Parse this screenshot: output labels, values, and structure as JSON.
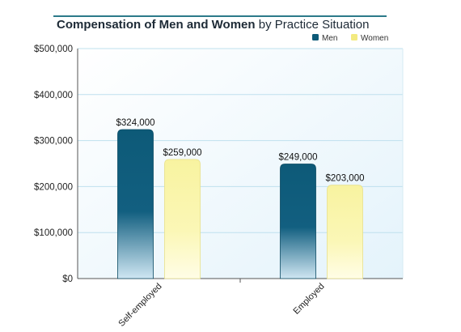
{
  "chart_data": {
    "type": "bar",
    "title_bold": "Compensation of Men and Women",
    "title_rest": " by Practice Situation",
    "categories": [
      "Self-employed",
      "Employed"
    ],
    "series": [
      {
        "name": "Men",
        "values": [
          324000,
          249000
        ],
        "labels": [
          "$324,000",
          "$249,000"
        ],
        "color": "#0d5a78"
      },
      {
        "name": "Women",
        "values": [
          259000,
          203000
        ],
        "labels": [
          "$259,000",
          "$203,000"
        ],
        "color": "#f7f09a"
      }
    ],
    "y_ticks": [
      0,
      100000,
      200000,
      300000,
      400000,
      500000
    ],
    "y_tick_labels": [
      "$0",
      "$100,000",
      "$200,000",
      "$300,000",
      "$400,000",
      "$500,000"
    ],
    "ylim": [
      0,
      500000
    ],
    "grid": true,
    "legend_position": "top-right",
    "colors": {
      "background_light": "#eaf6fc",
      "grid": "#bfe0ee",
      "axis": "#555555"
    }
  }
}
